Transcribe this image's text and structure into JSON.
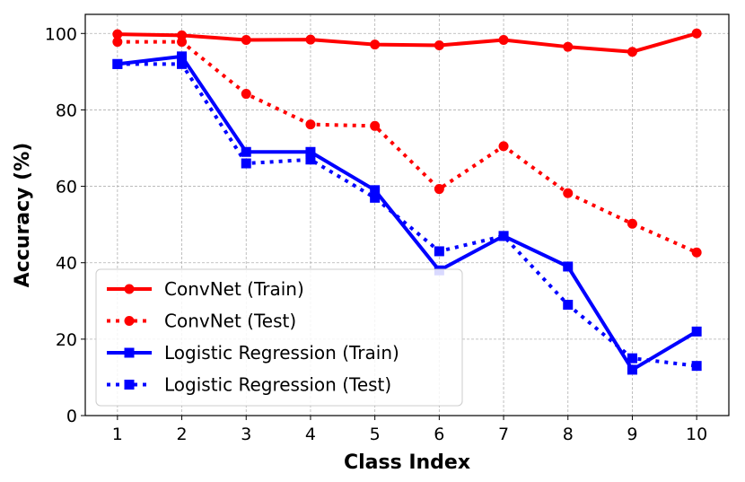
{
  "chart_data": {
    "type": "line",
    "title": "",
    "xlabel": "Class Index",
    "ylabel": "Accuracy (%)",
    "x": [
      1,
      2,
      3,
      4,
      5,
      6,
      7,
      8,
      9,
      10
    ],
    "xticks": [
      "1",
      "2",
      "3",
      "4",
      "5",
      "6",
      "7",
      "8",
      "9",
      "10"
    ],
    "yticks": [
      "0",
      "20",
      "40",
      "60",
      "80",
      "100"
    ],
    "xlim": [
      0.5,
      10.5
    ],
    "ylim": [
      0,
      105
    ],
    "grid": true,
    "legend_position": "lower-left",
    "series": [
      {
        "name": "ConvNet (Train)",
        "color": "#ff0000",
        "line_style": "solid",
        "marker": "circle",
        "values": [
          99.8,
          99.5,
          98.3,
          98.4,
          97.1,
          96.9,
          98.3,
          96.5,
          95.2,
          100.0
        ]
      },
      {
        "name": "ConvNet (Test)",
        "color": "#ff0000",
        "line_style": "dotted",
        "marker": "circle",
        "values": [
          97.8,
          97.8,
          84.2,
          76.2,
          75.8,
          59.3,
          70.5,
          58.2,
          50.2,
          42.7
        ]
      },
      {
        "name": "Logistic Regression (Train)",
        "color": "#0000ff",
        "line_style": "solid",
        "marker": "square",
        "values": [
          92,
          94,
          69,
          69,
          59,
          38,
          47,
          39,
          12,
          22
        ]
      },
      {
        "name": "Logistic Regression (Test)",
        "color": "#0000ff",
        "line_style": "dotted",
        "marker": "square",
        "values": [
          92,
          92,
          66,
          67,
          57,
          43,
          47,
          29,
          15,
          13
        ]
      }
    ]
  }
}
